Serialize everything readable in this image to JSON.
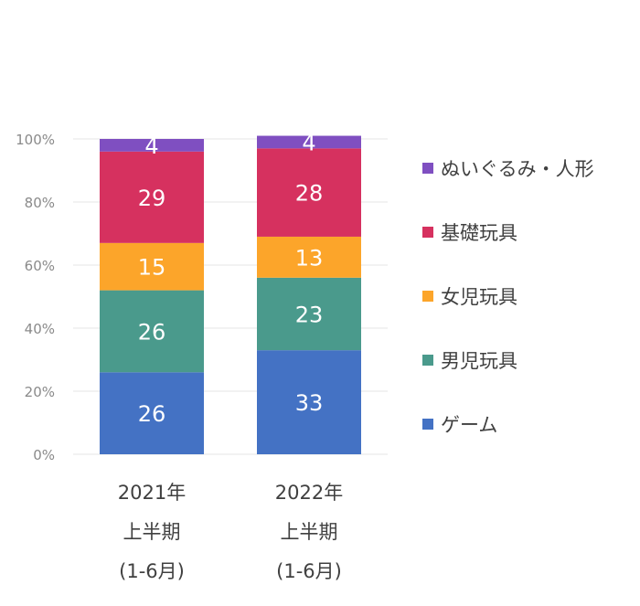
{
  "chart_data": {
    "type": "bar",
    "stacked": true,
    "categories": [
      [
        "2021年",
        "上半期",
        "(1-6月)"
      ],
      [
        "2022年",
        "上半期",
        "(1-6月)"
      ]
    ],
    "series": [
      {
        "name": "ゲーム",
        "color": "#4472c4",
        "values": [
          26,
          33
        ]
      },
      {
        "name": "男児玩具",
        "color": "#4a9a8c",
        "values": [
          26,
          23
        ]
      },
      {
        "name": "女児玩具",
        "color": "#fca52a",
        "values": [
          15,
          13
        ]
      },
      {
        "name": "基礎玩具",
        "color": "#d6315f",
        "values": [
          29,
          28
        ]
      },
      {
        "name": "ぬいぐるみ・人形",
        "color": "#7f4fc1",
        "values": [
          4,
          4
        ]
      }
    ],
    "ylim": [
      0,
      100
    ],
    "yticks": [
      "0%",
      "20%",
      "40%",
      "60%",
      "80%",
      "100%"
    ],
    "grid": true,
    "legend": "right"
  }
}
